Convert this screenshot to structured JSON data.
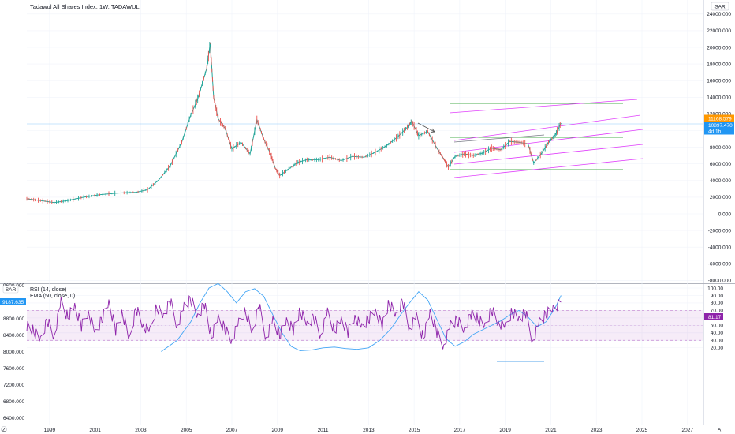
{
  "header": {
    "title": "Tadawul All Shares Index, 1W, TADAWUL",
    "currency_top": "SAR",
    "currency_bottom": "SAR",
    "bottom_left_value": "9600.000"
  },
  "price_tags": {
    "orange_level": "11168.579",
    "last_price": "10897.470",
    "countdown": "4d 1h",
    "rsi_left": "9187.635",
    "rsi_value": "81.17"
  },
  "rsi_legend": {
    "line1": "RSI (14, close)",
    "line2": "EMA (50, close, 0)"
  },
  "footer": {
    "left_icon_label": "Z",
    "right_icon_label": "A"
  },
  "colors": {
    "candle_up": "#26a69a",
    "candle_down": "#ef5350",
    "rsi_line": "#8e24aa",
    "rsi_band": "#9c27b0",
    "ema_line": "#42a5f5",
    "orange": "#ff9800",
    "green_lines": "#4caf50",
    "channel_lines": "#e040fb",
    "gray_trend": "#787b86",
    "last_price_tag": "#2196f3"
  },
  "chart_data": [
    {
      "type": "line",
      "title": "Tadawul All Shares Index, 1W, TADAWUL",
      "x_ticks": [
        "1999",
        "2001",
        "2003",
        "2005",
        "2007",
        "2009",
        "2011",
        "2013",
        "2015",
        "2017",
        "2019",
        "2021",
        "2023",
        "2025",
        "2027"
      ],
      "y_ticks": [
        "24000.000",
        "22000.000",
        "20000.000",
        "18000.000",
        "16000.000",
        "14000.000",
        "12000.000",
        "10000.000",
        "8000.000",
        "6000.000",
        "4000.000",
        "2000.000",
        "0.000",
        "-2000.000",
        "-4000.000",
        "-6000.000",
        "-8000.000"
      ],
      "ylim": [
        -8000,
        24500
      ],
      "xlim": [
        1998.0,
        2027.7
      ],
      "series": [
        {
          "x": [
            1998.0,
            1998.6,
            1999.2,
            1999.8,
            2000.5,
            2001.2,
            2002.0,
            2002.8,
            2003.3,
            2003.8,
            2004.3,
            2004.8,
            2005.2,
            2005.5,
            2005.9,
            2006.05,
            2006.2,
            2006.4,
            2006.7,
            2007.0,
            2007.4,
            2007.8,
            2008.1,
            2008.4,
            2008.7,
            2008.9,
            2009.1,
            2009.5,
            2009.9,
            2010.3,
            2010.8,
            2011.3,
            2011.8,
            2012.3,
            2012.8,
            2013.3,
            2013.8,
            2014.3,
            2014.7,
            2014.9,
            2015.2,
            2015.6,
            2016.0,
            2016.3,
            2016.5,
            2016.8,
            2017.2,
            2017.6,
            2018.0,
            2018.4,
            2018.8,
            2019.2,
            2019.6,
            2020.0,
            2020.25,
            2020.6,
            2020.9,
            2021.2,
            2021.45
          ],
          "values": [
            1800,
            1600,
            1350,
            1600,
            2000,
            2300,
            2500,
            2600,
            2900,
            4100,
            5800,
            8600,
            11900,
            13800,
            17500,
            20500,
            14000,
            11400,
            10300,
            7800,
            8600,
            7200,
            11300,
            9000,
            7200,
            5500,
            4600,
            5400,
            6200,
            6500,
            6500,
            6800,
            6400,
            6900,
            6800,
            7400,
            8200,
            9300,
            10400,
            11100,
            9400,
            9900,
            7900,
            6600,
            5600,
            6900,
            7200,
            7000,
            7300,
            7900,
            7700,
            8700,
            8600,
            8400,
            6100,
            7300,
            8600,
            9500,
            10900
          ]
        }
      ]
    },
    {
      "type": "line",
      "title": "RSI (14, close)",
      "y_ticks_left": [
        "8800.000",
        "8400.000",
        "8000.000",
        "7600.000",
        "7200.000",
        "6800.000",
        "6400.000"
      ],
      "y_ticks_right": [
        "100.00",
        "90.00",
        "80.00",
        "70.00",
        "60.00",
        "50.00",
        "40.00",
        "30.00",
        "20.00"
      ],
      "ylim": [
        15,
        100
      ],
      "band": [
        30,
        70
      ],
      "series": [
        {
          "name": "RSI (14, close)",
          "x": [
            1998.0,
            1998.3,
            1998.6,
            1998.9,
            1999.2,
            1999.5,
            1999.8,
            2000.1,
            2000.4,
            2000.7,
            2001.0,
            2001.3,
            2001.6,
            2001.9,
            2002.2,
            2002.5,
            2002.8,
            2003.1,
            2003.4,
            2003.7,
            2004.0,
            2004.3,
            2004.6,
            2004.9,
            2005.2,
            2005.5,
            2005.8,
            2006.1,
            2006.4,
            2006.7,
            2007.0,
            2007.3,
            2007.6,
            2007.9,
            2008.2,
            2008.5,
            2008.8,
            2009.1,
            2009.4,
            2009.7,
            2010.0,
            2010.3,
            2010.6,
            2010.9,
            2011.2,
            2011.5,
            2011.8,
            2012.1,
            2012.4,
            2012.7,
            2013.0,
            2013.3,
            2013.6,
            2013.9,
            2014.2,
            2014.5,
            2014.8,
            2015.1,
            2015.4,
            2015.7,
            2016.0,
            2016.3,
            2016.6,
            2016.9,
            2017.2,
            2017.5,
            2017.8,
            2018.1,
            2018.4,
            2018.7,
            2019.0,
            2019.3,
            2019.6,
            2019.9,
            2020.2,
            2020.5,
            2020.8,
            2021.1,
            2021.45
          ],
          "values": [
            50,
            42,
            30,
            58,
            35,
            80,
            62,
            76,
            48,
            70,
            38,
            58,
            82,
            44,
            66,
            30,
            74,
            50,
            40,
            76,
            62,
            82,
            50,
            74,
            84,
            63,
            79,
            34,
            60,
            46,
            30,
            52,
            70,
            40,
            76,
            34,
            56,
            36,
            58,
            44,
            69,
            50,
            62,
            36,
            66,
            44,
            58,
            40,
            64,
            46,
            58,
            70,
            50,
            80,
            62,
            84,
            45,
            60,
            34,
            68,
            40,
            24,
            50,
            56,
            44,
            66,
            58,
            48,
            72,
            54,
            46,
            70,
            58,
            66,
            30,
            54,
            64,
            74,
            81.17
          ]
        },
        {
          "name": "EMA (50, close, 0)",
          "x": [
            2003.9,
            2004.6,
            2005.2,
            2005.6,
            2006.0,
            2006.4,
            2006.8,
            2007.2,
            2007.6,
            2008.0,
            2008.4,
            2008.8,
            2009.2,
            2009.6,
            2010.0,
            2010.5,
            2011.0,
            2011.5,
            2012.0,
            2012.5,
            2013.0,
            2013.5,
            2014.0,
            2014.4,
            2014.8,
            2015.2,
            2015.6,
            2016.0,
            2016.4,
            2016.8,
            2017.2,
            2017.6,
            2018.0,
            2018.4,
            2018.8,
            2019.2,
            2019.6,
            2020.0,
            2020.4,
            2020.8,
            2021.2,
            2021.45
          ],
          "values": [
            15,
            30,
            55,
            80,
            100,
            106,
            95,
            80,
            95,
            99,
            89,
            64,
            40,
            22,
            16,
            17,
            20,
            21,
            19,
            18,
            20,
            30,
            46,
            64,
            80,
            95,
            84,
            58,
            32,
            22,
            28,
            38,
            44,
            50,
            56,
            64,
            70,
            61,
            48,
            55,
            74,
            90
          ]
        }
      ]
    }
  ]
}
